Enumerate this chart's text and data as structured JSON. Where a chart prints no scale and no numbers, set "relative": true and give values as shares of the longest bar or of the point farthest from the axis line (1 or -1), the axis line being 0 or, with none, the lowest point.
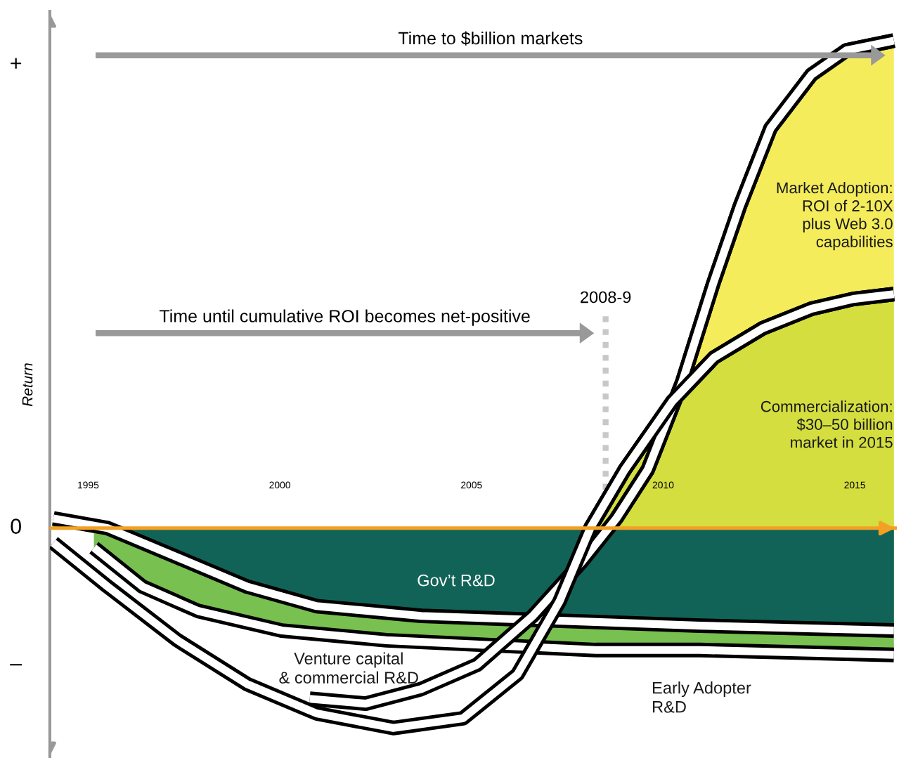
{
  "chart_data": {
    "type": "area",
    "relative": true,
    "ylabel": "Return",
    "xlim": [
      1994,
      2016.1
    ],
    "xticks": [
      1995,
      2000,
      2005,
      2010,
      2015
    ],
    "series": [
      {
        "color": "#f4ec5a",
        "x": [
          2008.78,
          2009.6,
          2010.5,
          2011.3,
          2012.0,
          2012.8,
          2013.87,
          2014.78,
          2016.02
        ],
        "values": [
          0.02,
          0.12,
          0.3,
          0.5,
          0.66,
          0.82,
          0.93,
          0.98,
          1
        ]
      },
      {
        "color": "#d4de3f",
        "x": [
          2008.1,
          2009.0,
          2010.24,
          2011.33,
          2012.6,
          2013.87,
          2014.96,
          2016.02
        ],
        "values": [
          0.0,
          0.12,
          0.26,
          0.35,
          0.41,
          0.45,
          0.47,
          0.48
        ]
      },
      {
        "color": "#78c050",
        "x": [
          1995.15,
          1996.42,
          1997.87,
          2000.05,
          2002.78,
          2005.51,
          2008.24,
          2010.96,
          2016.02
        ],
        "values": [
          -0.04,
          -0.12,
          -0.17,
          -0.21,
          -0.23,
          -0.24,
          -0.25,
          -0.25,
          -0.26
        ]
      },
      {
        "color": "#126357",
        "x": [
          1994.09,
          1995.51,
          1997.33,
          1999.15,
          2000.96,
          2003.69,
          2007.33,
          2010.96,
          2016.02
        ],
        "values": [
          0.02,
          0.0,
          -0.06,
          -0.12,
          -0.16,
          -0.18,
          -0.19,
          -0.2,
          -0.21
        ]
      },
      {
        "type": "line",
        "color": "#000000",
        "x": [
          2000.78,
          2002.24,
          2003.69,
          2005.15,
          2006.6,
          2007.87,
          2008.78,
          2009.6,
          2010.5,
          2011.3,
          2012.0,
          2012.8,
          2013.87,
          2014.78,
          2016.02
        ],
        "values": [
          -0.35,
          -0.36,
          -0.33,
          -0.28,
          -0.18,
          -0.07,
          0.02,
          0.12,
          0.3,
          0.5,
          0.66,
          0.82,
          0.93,
          0.98,
          1
        ]
      },
      {
        "type": "line",
        "color": "#000000",
        "x": [
          1994.09,
          1995.51,
          1997.33,
          1999.15,
          2000.96,
          2002.96,
          2004.78,
          2006.2,
          2007.3,
          2008.1,
          2009.0,
          2010.24,
          2011.33,
          2012.6,
          2013.87,
          2014.96,
          2016.02
        ],
        "values": [
          -0.03,
          -0.12,
          -0.23,
          -0.32,
          -0.38,
          -0.41,
          -0.39,
          -0.3,
          -0.15,
          0.0,
          0.12,
          0.26,
          0.35,
          0.41,
          0.45,
          0.47,
          0.48
        ]
      }
    ],
    "ref_lines": [
      {
        "axis": "y",
        "value": 0,
        "color": "#f4a024",
        "line_style": "solid"
      },
      {
        "axis": "x",
        "value": 2008.5,
        "label": "2008-9",
        "color": "#c8c8c8",
        "line_style": "dotted"
      }
    ],
    "annotations": [
      "Time to $billion markets",
      "Time until cumulative ROI becomes net-positive",
      "+",
      "0",
      "–",
      "Gov’t R&D",
      "Venture capital\n& commercial R&D",
      "Early Adopter\nR&D",
      "Commercialization:\n$30–50 billion\nmarket in 2015",
      "Market Adoption:\nROI of 2-10X\nplus Web 3.0\ncapabilities"
    ],
    "grid": false,
    "legend": false
  }
}
